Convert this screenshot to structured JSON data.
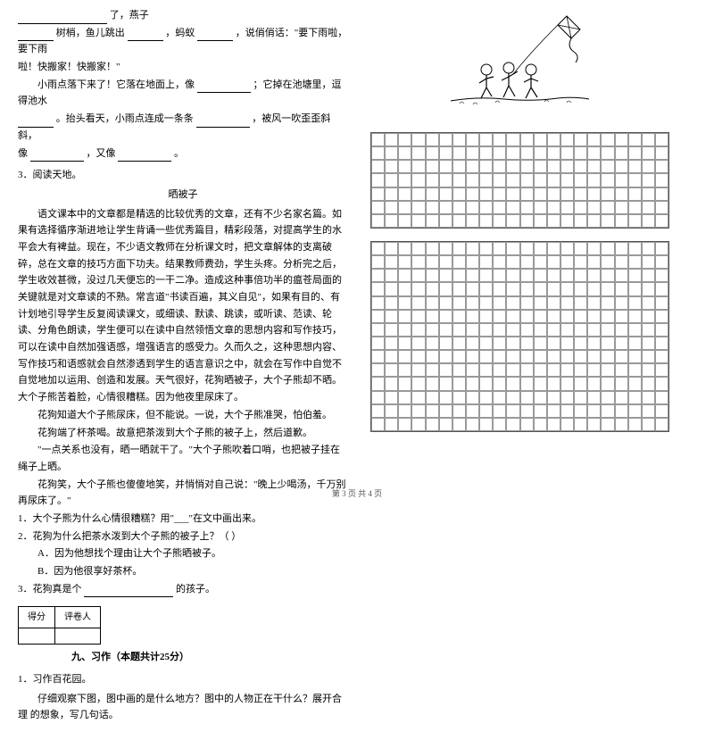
{
  "leftColumn": {
    "fillText1_suffix": "了，燕子",
    "fillText2_line1_mid": "树梢，鱼儿跳出",
    "fillText2_line1_end": "，蚂蚁",
    "fillText2_line1_tail": "，说俏俏话：\"要下雨啦，要下雨",
    "fillText2_line2": "啦！快搬家！快搬家！\"",
    "fillText3_line1": "小雨点落下来了！它落在地面上，像",
    "fillText3_line1_end": "；它掉在池塘里，逗得池水",
    "fillText3_line2_start": "。抬头看天，小雨点连成一条条",
    "fillText3_line2_end": "，被风一吹歪歪斜斜，",
    "fillText3_line3_start": "像",
    "fillText3_line3_mid": "，又像",
    "fillText3_line3_end": "。",
    "q3Label": "3．阅读天地。",
    "readingTitle": "晒被子",
    "readingP1": "语文课本中的文章都是精选的比较优秀的文章，还有不少名家名篇。如果有选择循序渐进地让学生背诵一些优秀篇目，精彩段落，对提高学生的水平会大有裨益。现在，不少语文教师在分析课文时，把文章解体的支离破碎，总在文章的技巧方面下功夫。结果教师费劲，学生头疼。分析完之后，学生收效甚微，没过几天便忘的一干二净。造成这种事倍功半的瘟苍局面的关键就是对文章读的不熟。常言道\"书读百遍，其义自见\"，如果有目的、有计划地引导学生反复阅读课文，或细读、默读、跳读，或听读、范读、轮读、分角色朗读，学生便可以在读中自然领悟文章的思想内容和写作技巧，可以在读中自然加强语感，增强语言的感受力。久而久之，这种思想内容、写作技巧和语感就会自然渗透到学生的语言意识之中，就会在写作中自觉不自觉地加以运用、创造和发展。天气很好，花狗晒被子，大个子熊却不晒。大个子熊苦着脸，心情很糟糕。因为他夜里尿床了。",
    "readingP2": "花狗知道大个子熊尿床，但不能说。一说，大个子熊准哭，怕伯羞。",
    "readingP3": "花狗端了杯茶喝。故意把茶泼到大个子熊的被子上，然后道歉。",
    "readingP4": "\"一点关系也没有，晒一晒就干了。\"大个子熊吹着口哨，也把被子挂在绳子上晒。",
    "readingP5": "花狗笑，大个子熊也傻傻地笑，并悄悄对自己说：\"晚上少喝汤，千万别再尿床了。\"",
    "sub1": "1．大个子熊为什么心情很糟糕？用\"___\"在文中画出来。",
    "sub2": "2．花狗为什么把茶水泼到大个子熊的被子上？（ ）",
    "sub2A": "A．因为他想找个理由让大个子熊晒被子。",
    "sub2B": "B．因为他很享好茶杯。",
    "sub3_start": "3．花狗真是个",
    "sub3_end": "的孩子。",
    "scoreCol1": "得分",
    "scoreCol2": "评卷人",
    "sectionNine": "九、习作（本题共计25分）",
    "writing1": "1．习作百花园。",
    "writing1Desc": "仔细观察下图，图中画的是什么地方？图中的人物正在干什么？展开合理 的想象，写几句话。"
  },
  "footer": "第 3 页 共 4 页",
  "grid": {
    "cols": 22,
    "rows1": 7,
    "rows2": 14
  },
  "styling": {
    "bodyFontSize": 11,
    "bodyLineHeight": 1.7,
    "textColor": "#000000",
    "bgColor": "#ffffff",
    "gridBorderColor": "#999999",
    "gridOuterBorder": "#555555"
  }
}
